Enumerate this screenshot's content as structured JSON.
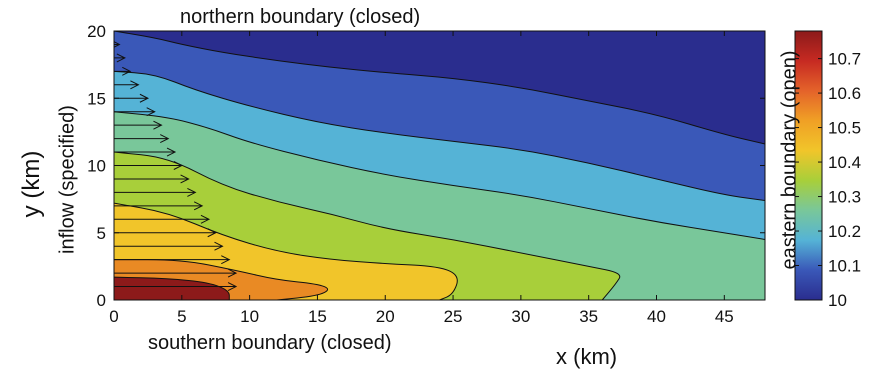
{
  "figure": {
    "top_label": "northern boundary (closed)",
    "bottom_label": "southern boundary (closed)",
    "left_label": "inflow (specified)",
    "right_label": "eastern boundary (open)"
  },
  "chart_data": {
    "type": "heatmap",
    "xlabel": "x (km)",
    "ylabel": "y (km)",
    "xlim": [
      0,
      48
    ],
    "ylim": [
      0,
      20
    ],
    "x_ticks": [
      0,
      5,
      10,
      15,
      20,
      25,
      30,
      35,
      40,
      45
    ],
    "y_ticks": [
      0,
      5,
      10,
      15,
      20
    ],
    "colorbar": {
      "min": 10,
      "max": 10.78,
      "ticks": [
        10,
        10.1,
        10.2,
        10.3,
        10.4,
        10.5,
        10.6,
        10.7
      ],
      "colors": [
        "#2a2d8e",
        "#3a58b8",
        "#55b3d6",
        "#79c79a",
        "#a8cf3a",
        "#f1c52a",
        "#f0a025",
        "#e4632a",
        "#c62a22",
        "#8c1a1a"
      ]
    },
    "contour_levels": [
      10.1,
      10.2,
      10.3,
      10.4,
      10.5,
      10.6,
      10.7
    ],
    "contour_lines": [
      {
        "level": 10.7,
        "points": [
          [
            0,
            1.7
          ],
          [
            4,
            1.6
          ],
          [
            7,
            1.3
          ],
          [
            8.5,
            0.7
          ],
          [
            8.5,
            0
          ]
        ]
      },
      {
        "level": 10.6,
        "points": [
          [
            0,
            3.0
          ],
          [
            5,
            3.0
          ],
          [
            9,
            2.2
          ],
          [
            12,
            1.5
          ],
          [
            15,
            1.2
          ],
          [
            16,
            0.8
          ],
          [
            15,
            0.3
          ],
          [
            12,
            0
          ]
        ]
      },
      {
        "level": 10.5,
        "points": [
          [
            0,
            7.2
          ],
          [
            4,
            6.5
          ],
          [
            8,
            4.8
          ],
          [
            12,
            3.6
          ],
          [
            16,
            3.0
          ],
          [
            20,
            2.7
          ],
          [
            24,
            2.5
          ],
          [
            25.5,
            1.8
          ],
          [
            25,
            0.4
          ],
          [
            24,
            0
          ]
        ]
      },
      {
        "level": 10.4,
        "points": [
          [
            0,
            11.0
          ],
          [
            4,
            10.6
          ],
          [
            8,
            8.5
          ],
          [
            12,
            7.3
          ],
          [
            16,
            6.4
          ],
          [
            20,
            5.3
          ],
          [
            25,
            4.5
          ],
          [
            30,
            3.5
          ],
          [
            35,
            2.5
          ],
          [
            37.5,
            2.0
          ],
          [
            37,
            1.2
          ],
          [
            36,
            0
          ]
        ]
      },
      {
        "level": 10.3,
        "points": [
          [
            0,
            14.0
          ],
          [
            4,
            13.6
          ],
          [
            7,
            12.8
          ],
          [
            10,
            11.7
          ],
          [
            15,
            10.4
          ],
          [
            20,
            9.3
          ],
          [
            25,
            8.5
          ],
          [
            30,
            7.8
          ],
          [
            35,
            6.8
          ],
          [
            40,
            5.8
          ],
          [
            45,
            5.0
          ],
          [
            48,
            4.5
          ]
        ]
      },
      {
        "level": 10.2,
        "points": [
          [
            0,
            17.0
          ],
          [
            3,
            16.8
          ],
          [
            6,
            15.6
          ],
          [
            10,
            14.4
          ],
          [
            15,
            13.2
          ],
          [
            20,
            12.4
          ],
          [
            25,
            11.8
          ],
          [
            30,
            11.2
          ],
          [
            35,
            10.2
          ],
          [
            40,
            9.0
          ],
          [
            45,
            7.8
          ],
          [
            48,
            7.4
          ]
        ]
      },
      {
        "level": 10.1,
        "points": [
          [
            0,
            20.0
          ],
          [
            3,
            19.5
          ],
          [
            5,
            19.0
          ],
          [
            8,
            18.4
          ],
          [
            12,
            17.8
          ],
          [
            16,
            17.3
          ],
          [
            20,
            16.9
          ],
          [
            25,
            16.5
          ],
          [
            30,
            15.8
          ],
          [
            35,
            14.8
          ],
          [
            40,
            13.8
          ],
          [
            45,
            12.3
          ],
          [
            48,
            11.6
          ]
        ]
      }
    ],
    "inflow_arrows": [
      {
        "y": 1.0,
        "length": 9.0
      },
      {
        "y": 2.0,
        "length": 9.0
      },
      {
        "y": 3.0,
        "length": 8.5
      },
      {
        "y": 4.0,
        "length": 8.0
      },
      {
        "y": 5.0,
        "length": 7.5
      },
      {
        "y": 6.0,
        "length": 7.0
      },
      {
        "y": 7.0,
        "length": 6.5
      },
      {
        "y": 8.0,
        "length": 6.0
      },
      {
        "y": 9.0,
        "length": 5.5
      },
      {
        "y": 10.0,
        "length": 5.0
      },
      {
        "y": 11.0,
        "length": 4.5
      },
      {
        "y": 12.0,
        "length": 4.0
      },
      {
        "y": 13.0,
        "length": 3.5
      },
      {
        "y": 14.0,
        "length": 3.0
      },
      {
        "y": 15.0,
        "length": 2.5
      },
      {
        "y": 16.0,
        "length": 1.8
      },
      {
        "y": 17.0,
        "length": 1.2
      },
      {
        "y": 18.0,
        "length": 0.8
      },
      {
        "y": 19.0,
        "length": 0.4
      }
    ]
  }
}
